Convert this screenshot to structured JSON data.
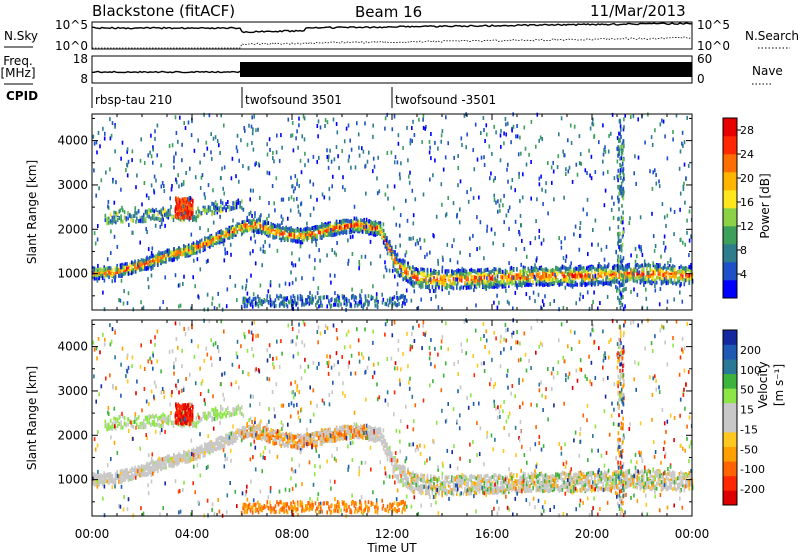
{
  "header": {
    "station": "Blackstone (fitACF)",
    "beam": "Beam 16",
    "date": "11/Mar/2013"
  },
  "params": {
    "nsky_label": "N.Sky",
    "nsky_ticks": [
      "10^5",
      "10^0"
    ],
    "nsearch_label": "N.Search",
    "freq_label": "Freq.",
    "freq_unit": "[MHz]",
    "freq_ticks": [
      "18",
      "8"
    ],
    "nave_label": "Nave",
    "nave_ticks": [
      "60",
      "0"
    ],
    "cpid_label": "CPID",
    "cpid_segments": [
      {
        "label": "rbsp-tau 210",
        "start_hour": 0,
        "end_hour": 6
      },
      {
        "label": "twofsound 3501",
        "start_hour": 6,
        "end_hour": 12
      },
      {
        "label": "twofsound -3501",
        "start_hour": 12,
        "end_hour": 24
      }
    ]
  },
  "chart_data": [
    {
      "type": "heatmap",
      "name": "power",
      "ylabel": "Slant Range [km]",
      "xlim": [
        0,
        24
      ],
      "ylim": [
        180,
        4600
      ],
      "yticks": [
        1000,
        2000,
        3000,
        4000
      ],
      "colorbar": {
        "label": "Power [dB]",
        "ticks": [
          "4",
          "8",
          "12",
          "16",
          "20",
          "24",
          "28"
        ],
        "colors": [
          "#0000ff",
          "#1e50c8",
          "#2e7d8c",
          "#3da05a",
          "#8cd246",
          "#ffe61e",
          "#ffb400",
          "#ff6e00",
          "#ff2800",
          "#e60000"
        ]
      },
      "echo_bands": [
        {
          "x": [
            0.0,
            1.0,
            2.0,
            3.0,
            4.0,
            5.0,
            6.0,
            6.5,
            7.5,
            8.5,
            9.5,
            10.5,
            11.5,
            12.2,
            13,
            14,
            16,
            18,
            20,
            22,
            24
          ],
          "y": [
            1000,
            1050,
            1200,
            1400,
            1550,
            1800,
            2050,
            2100,
            1900,
            1850,
            2000,
            2100,
            2000,
            1150,
            900,
            850,
            900,
            950,
            950,
            1000,
            950
          ]
        },
        {
          "x": [
            0.5,
            1.0,
            2.0,
            3.0,
            4.0,
            5.0,
            6.0
          ],
          "y": [
            2200,
            2300,
            2300,
            2350,
            2300,
            2500,
            2600
          ]
        }
      ]
    },
    {
      "type": "heatmap",
      "name": "velocity",
      "xlabel": "Time UT",
      "ylabel": "Slant Range [km]",
      "xlim": [
        0,
        24
      ],
      "ylim": [
        180,
        4600
      ],
      "xticks": [
        "00:00",
        "04:00",
        "08:00",
        "12:00",
        "16:00",
        "20:00",
        "00:00"
      ],
      "yticks": [
        1000,
        2000,
        3000,
        4000
      ],
      "colorbar": {
        "label": "Velocity",
        "unit": "[m s⁻¹]",
        "ticks": [
          "200",
          "100",
          "50",
          "15",
          "-15",
          "-50",
          "-100",
          "-200"
        ],
        "colors": [
          "#1428a0",
          "#1e5ab4",
          "#287896",
          "#3cb43c",
          "#8ce646",
          "#c8c8c8",
          "#c8c8c8",
          "#ffc81e",
          "#ffa000",
          "#ff6400",
          "#ff2800",
          "#dc0000"
        ]
      }
    }
  ]
}
